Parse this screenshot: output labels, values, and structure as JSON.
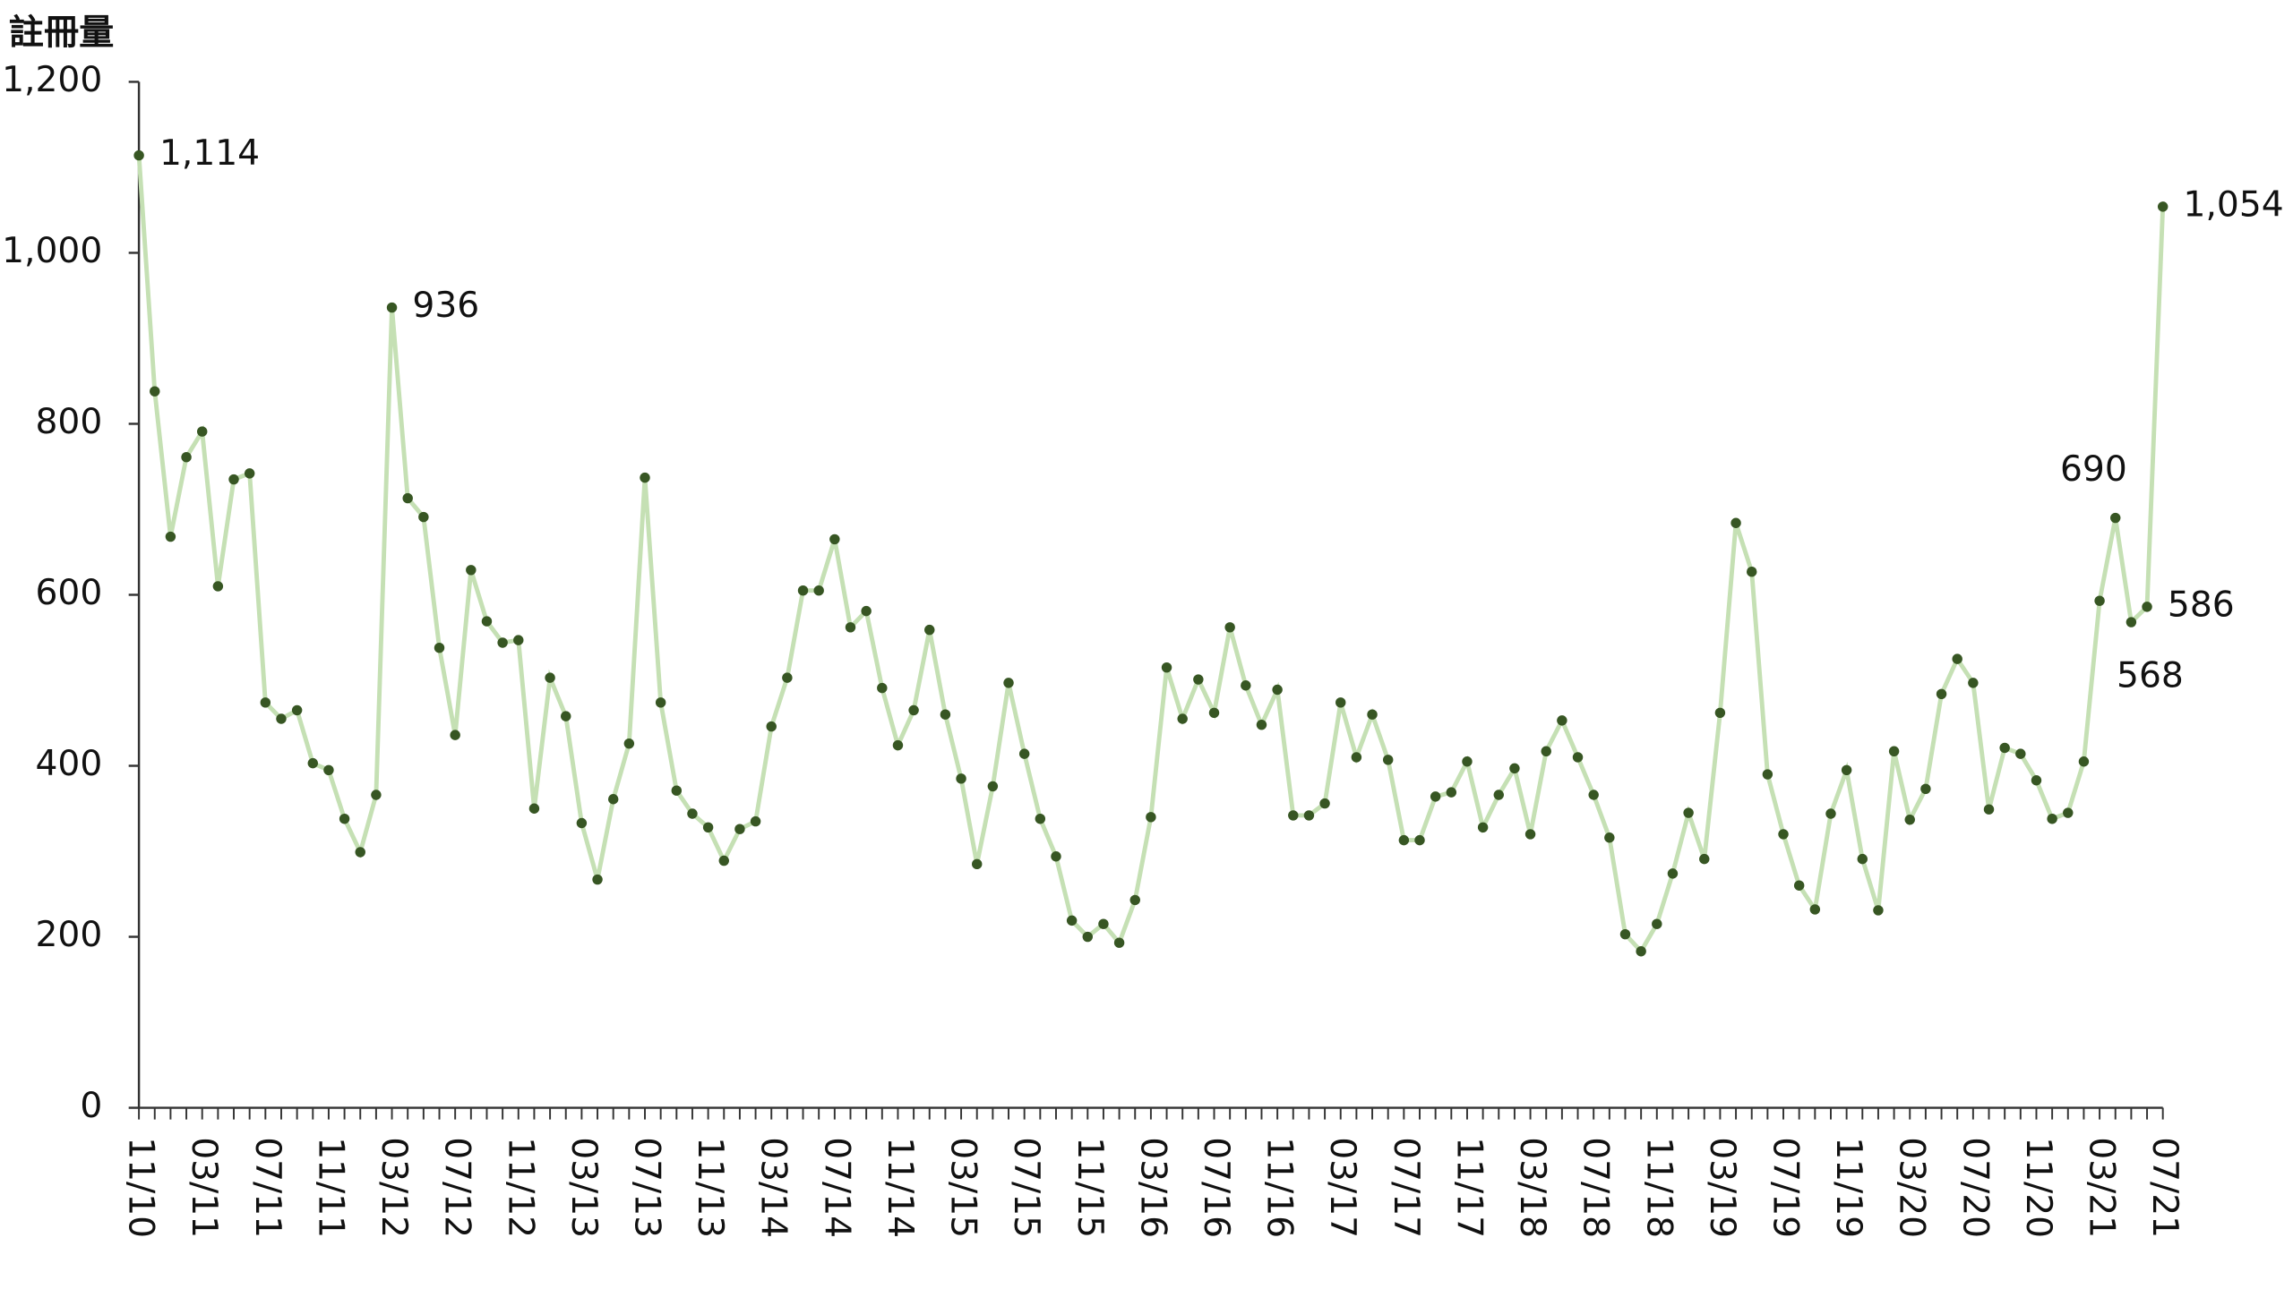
{
  "chart_data": {
    "type": "line",
    "y_label": "註冊量",
    "categories": [
      "11/10",
      null,
      null,
      null,
      "03/11",
      null,
      null,
      null,
      "07/11",
      null,
      null,
      null,
      "11/11",
      null,
      null,
      null,
      "03/12",
      null,
      null,
      null,
      "07/12",
      null,
      null,
      null,
      "11/12",
      null,
      null,
      null,
      "03/13",
      null,
      null,
      null,
      "07/13",
      null,
      null,
      null,
      "11/13",
      null,
      null,
      null,
      "03/14",
      null,
      null,
      null,
      "07/14",
      null,
      null,
      null,
      "11/14",
      null,
      null,
      null,
      "03/15",
      null,
      null,
      null,
      "07/15",
      null,
      null,
      null,
      "11/15",
      null,
      null,
      null,
      "03/16",
      null,
      null,
      null,
      "07/16",
      null,
      null,
      null,
      "11/16",
      null,
      null,
      null,
      "03/17",
      null,
      null,
      null,
      "07/17",
      null,
      null,
      null,
      "11/17",
      null,
      null,
      null,
      "03/18",
      null,
      null,
      null,
      "07/18",
      null,
      null,
      null,
      "11/18",
      null,
      null,
      null,
      "03/19",
      null,
      null,
      null,
      "07/19",
      null,
      null,
      null,
      "11/19",
      null,
      null,
      null,
      "03/20",
      null,
      null,
      null,
      "07/20",
      null,
      null,
      null,
      "11/20",
      null,
      null,
      null,
      "03/21",
      null,
      null,
      null,
      "07/21"
    ],
    "values": [
      1114,
      838,
      668,
      761,
      791,
      610,
      735,
      742,
      474,
      455,
      465,
      403,
      395,
      338,
      299,
      366,
      936,
      713,
      691,
      538,
      436,
      629,
      569,
      544,
      547,
      350,
      503,
      458,
      333,
      267,
      361,
      426,
      737,
      474,
      371,
      344,
      328,
      289,
      326,
      335,
      446,
      503,
      605,
      605,
      665,
      562,
      581,
      491,
      424,
      465,
      559,
      460,
      385,
      285,
      376,
      497,
      414,
      338,
      294,
      219,
      200,
      215,
      193,
      243,
      340,
      515,
      455,
      501,
      462,
      562,
      494,
      448,
      489,
      342,
      342,
      356,
      474,
      410,
      460,
      407,
      313,
      313,
      364,
      369,
      405,
      328,
      366,
      397,
      320,
      417,
      453,
      410,
      366,
      316,
      203,
      183,
      215,
      274,
      345,
      291,
      462,
      684,
      627,
      390,
      320,
      260,
      232,
      344,
      395,
      291,
      231,
      417,
      337,
      373,
      484,
      525,
      497,
      349,
      421,
      414,
      383,
      338,
      345,
      405,
      593,
      690,
      568,
      586,
      1054
    ],
    "value_labels": [
      "1,114",
      null,
      null,
      null,
      null,
      null,
      null,
      null,
      null,
      null,
      null,
      null,
      null,
      null,
      null,
      null,
      "936",
      null,
      null,
      null,
      null,
      null,
      null,
      null,
      null,
      null,
      null,
      null,
      null,
      null,
      null,
      null,
      null,
      null,
      null,
      null,
      null,
      null,
      null,
      null,
      null,
      null,
      null,
      null,
      null,
      null,
      null,
      null,
      null,
      null,
      null,
      null,
      null,
      null,
      null,
      null,
      null,
      null,
      null,
      null,
      null,
      null,
      null,
      null,
      null,
      null,
      null,
      null,
      null,
      null,
      null,
      null,
      null,
      null,
      null,
      null,
      null,
      null,
      null,
      null,
      null,
      null,
      null,
      null,
      null,
      null,
      null,
      null,
      null,
      null,
      null,
      null,
      null,
      null,
      null,
      null,
      null,
      null,
      null,
      null,
      null,
      null,
      null,
      null,
      null,
      null,
      null,
      null,
      null,
      null,
      null,
      null,
      null,
      null,
      null,
      null,
      null,
      null,
      null,
      null,
      null,
      null,
      null,
      null,
      null,
      "690",
      "568",
      "586",
      "1,054"
    ],
    "line_color": "#c5e0b4",
    "marker_color": "#375623",
    "ylim": [
      0,
      1200
    ],
    "yticks": [
      0,
      200,
      400,
      600,
      800,
      {
        "value": 1000,
        "label": "1,000"
      },
      {
        "value": 1200,
        "label": "1,200"
      }
    ],
    "grid": false
  }
}
